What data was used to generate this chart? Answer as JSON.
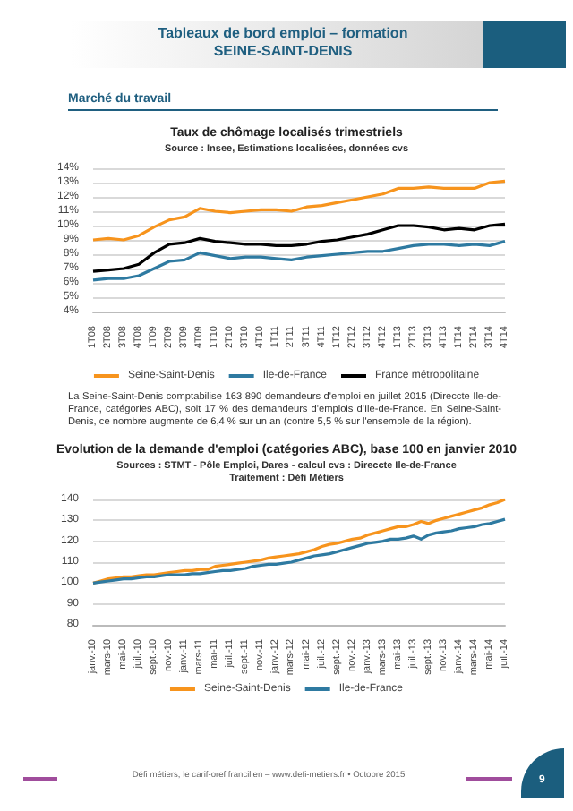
{
  "chart_data": [
    {
      "type": "line",
      "title": "Taux de chômage localisés trimestriels",
      "subtitle": "Source : Insee, Estimations localisées, données cvs",
      "annotations": [
        "Tableaux de bord emploi – formation",
        "SEINE-SAINT-DENIS",
        "Marché du travail"
      ],
      "categories": [
        "1T08",
        "2T08",
        "3T08",
        "4T08",
        "1T09",
        "2T09",
        "3T09",
        "4T09",
        "1T10",
        "2T10",
        "3T10",
        "4T10",
        "1T11",
        "2T11",
        "3T11",
        "4T11",
        "1T12",
        "2T12",
        "3T12",
        "4T12",
        "1T13",
        "2T13",
        "3T13",
        "4T13",
        "1T14",
        "2T14",
        "3T14",
        "4T14"
      ],
      "series": [
        {
          "name": "Seine-Saint-Denis",
          "color": "#f7941d",
          "values": [
            9.0,
            9.1,
            9.0,
            9.3,
            9.9,
            10.4,
            10.6,
            11.2,
            11.0,
            10.9,
            11.0,
            11.1,
            11.1,
            11.0,
            11.3,
            11.4,
            11.6,
            11.8,
            12.0,
            12.2,
            12.6,
            12.6,
            12.7,
            12.6,
            12.6,
            12.6,
            13.0,
            13.1
          ]
        },
        {
          "name": "Ile-de-France",
          "color": "#2e7aa1",
          "values": [
            6.2,
            6.3,
            6.3,
            6.5,
            7.0,
            7.5,
            7.6,
            8.1,
            7.9,
            7.7,
            7.8,
            7.8,
            7.7,
            7.6,
            7.8,
            7.9,
            8.0,
            8.1,
            8.2,
            8.2,
            8.4,
            8.6,
            8.7,
            8.7,
            8.6,
            8.7,
            8.6,
            8.9
          ]
        },
        {
          "name": "France métropolitaine",
          "color": "#000000",
          "values": [
            6.8,
            6.9,
            7.0,
            7.3,
            8.1,
            8.7,
            8.8,
            9.1,
            8.9,
            8.8,
            8.7,
            8.7,
            8.6,
            8.6,
            8.7,
            8.9,
            9.0,
            9.2,
            9.4,
            9.7,
            10.0,
            10.0,
            9.9,
            9.7,
            9.8,
            9.7,
            10.0,
            10.1
          ]
        }
      ],
      "ylim": [
        4,
        14
      ],
      "yticks": [
        {
          "value": 4,
          "label": "4%"
        },
        {
          "value": 5,
          "label": "5%"
        },
        {
          "value": 6,
          "label": "6%"
        },
        {
          "value": 7,
          "label": "7%"
        },
        {
          "value": 8,
          "label": "8%"
        },
        {
          "value": 9,
          "label": "9%"
        },
        {
          "value": 10,
          "label": "10%"
        },
        {
          "value": 11,
          "label": "11%"
        },
        {
          "value": 12,
          "label": "12%"
        },
        {
          "value": 13,
          "label": "13%"
        },
        {
          "value": 14,
          "label": "14%"
        }
      ],
      "grid": "y",
      "legend": "bottom",
      "marker": "none",
      "line_style": "solid"
    },
    {
      "type": "line",
      "title": "Evolution de la demande d'emploi (catégories ABC), base 100 en janvier 2010",
      "subtitle": "Sources : STMT - Pôle Emploi, Dares - calcul cvs : Direccte Ile-de-France\nTraitement : Défi Métiers",
      "annotations": [
        "La Seine-Saint-Denis comptabilise 163 890 demandeurs d'emploi en juillet 2015 (Direccte Ile-de-France, catégories ABC), soit 17 % des demandeurs d'emplois d'Ile-de-France. En Seine-Saint-Denis, ce nombre augmente de 6,4 % sur un an (contre 5,5 % sur l'ensemble de la région).",
        "Défi métiers, le carif-oref francilien – www.defi-metiers.fr • Octobre 2015",
        "9"
      ],
      "categories": [
        "janv.-10",
        null,
        "mars-10",
        null,
        "mai-10",
        null,
        "juil.-10",
        null,
        "sept.-10",
        null,
        "nov.-10",
        null,
        "janv.-11",
        null,
        "mars-11",
        null,
        "mai-11",
        null,
        "juil.-11",
        null,
        "sept.-11",
        null,
        "nov.-11",
        null,
        "janv.-12",
        null,
        "mars-12",
        null,
        "mai-12",
        null,
        "juil.-12",
        null,
        "sept.-12",
        null,
        "nov.-12",
        null,
        "janv.-13",
        null,
        "mars-13",
        null,
        "mai-13",
        null,
        "juil.-13",
        null,
        "sept.-13",
        null,
        "nov.-13",
        null,
        "janv.-14",
        null,
        "mars-14",
        null,
        "mai-14",
        null,
        "juil.-14"
      ],
      "series": [
        {
          "name": "Seine-Saint-Denis",
          "color": "#f7941d",
          "values": [
            100,
            101,
            102,
            102.5,
            103,
            103,
            103.5,
            104,
            104,
            104.5,
            105,
            105.5,
            106,
            106,
            106.5,
            106.5,
            108,
            108.5,
            109,
            109.5,
            110,
            110.5,
            111,
            112,
            112.5,
            113,
            113.5,
            114,
            115,
            116,
            117.5,
            118.5,
            119,
            120,
            121,
            121.5,
            123,
            124,
            125,
            126,
            127,
            127,
            128,
            129.5,
            128.5,
            130,
            131,
            132,
            133,
            134,
            135,
            136,
            137.5,
            138.5,
            140
          ]
        },
        {
          "name": "Ile-de-France",
          "color": "#2e7aa1",
          "values": [
            100,
            100.5,
            101,
            101.5,
            102,
            102,
            102.5,
            103,
            103,
            103.5,
            104,
            104,
            104,
            104.5,
            104.5,
            105,
            105.5,
            106,
            106,
            106.5,
            107,
            108,
            108.5,
            109,
            109,
            109.5,
            110,
            111,
            112,
            113,
            113.5,
            114,
            115,
            116,
            117,
            118,
            119,
            119.5,
            120,
            121,
            121,
            121.5,
            122.5,
            121,
            123,
            124,
            124.5,
            125,
            126,
            126.5,
            127,
            128,
            128.5,
            129.5,
            130.5
          ]
        }
      ],
      "ylim": [
        80,
        140
      ],
      "yticks": [
        80,
        90,
        100,
        110,
        120,
        130,
        140
      ],
      "grid": "y",
      "legend": "bottom",
      "marker": "none",
      "line_style": "solid"
    }
  ]
}
